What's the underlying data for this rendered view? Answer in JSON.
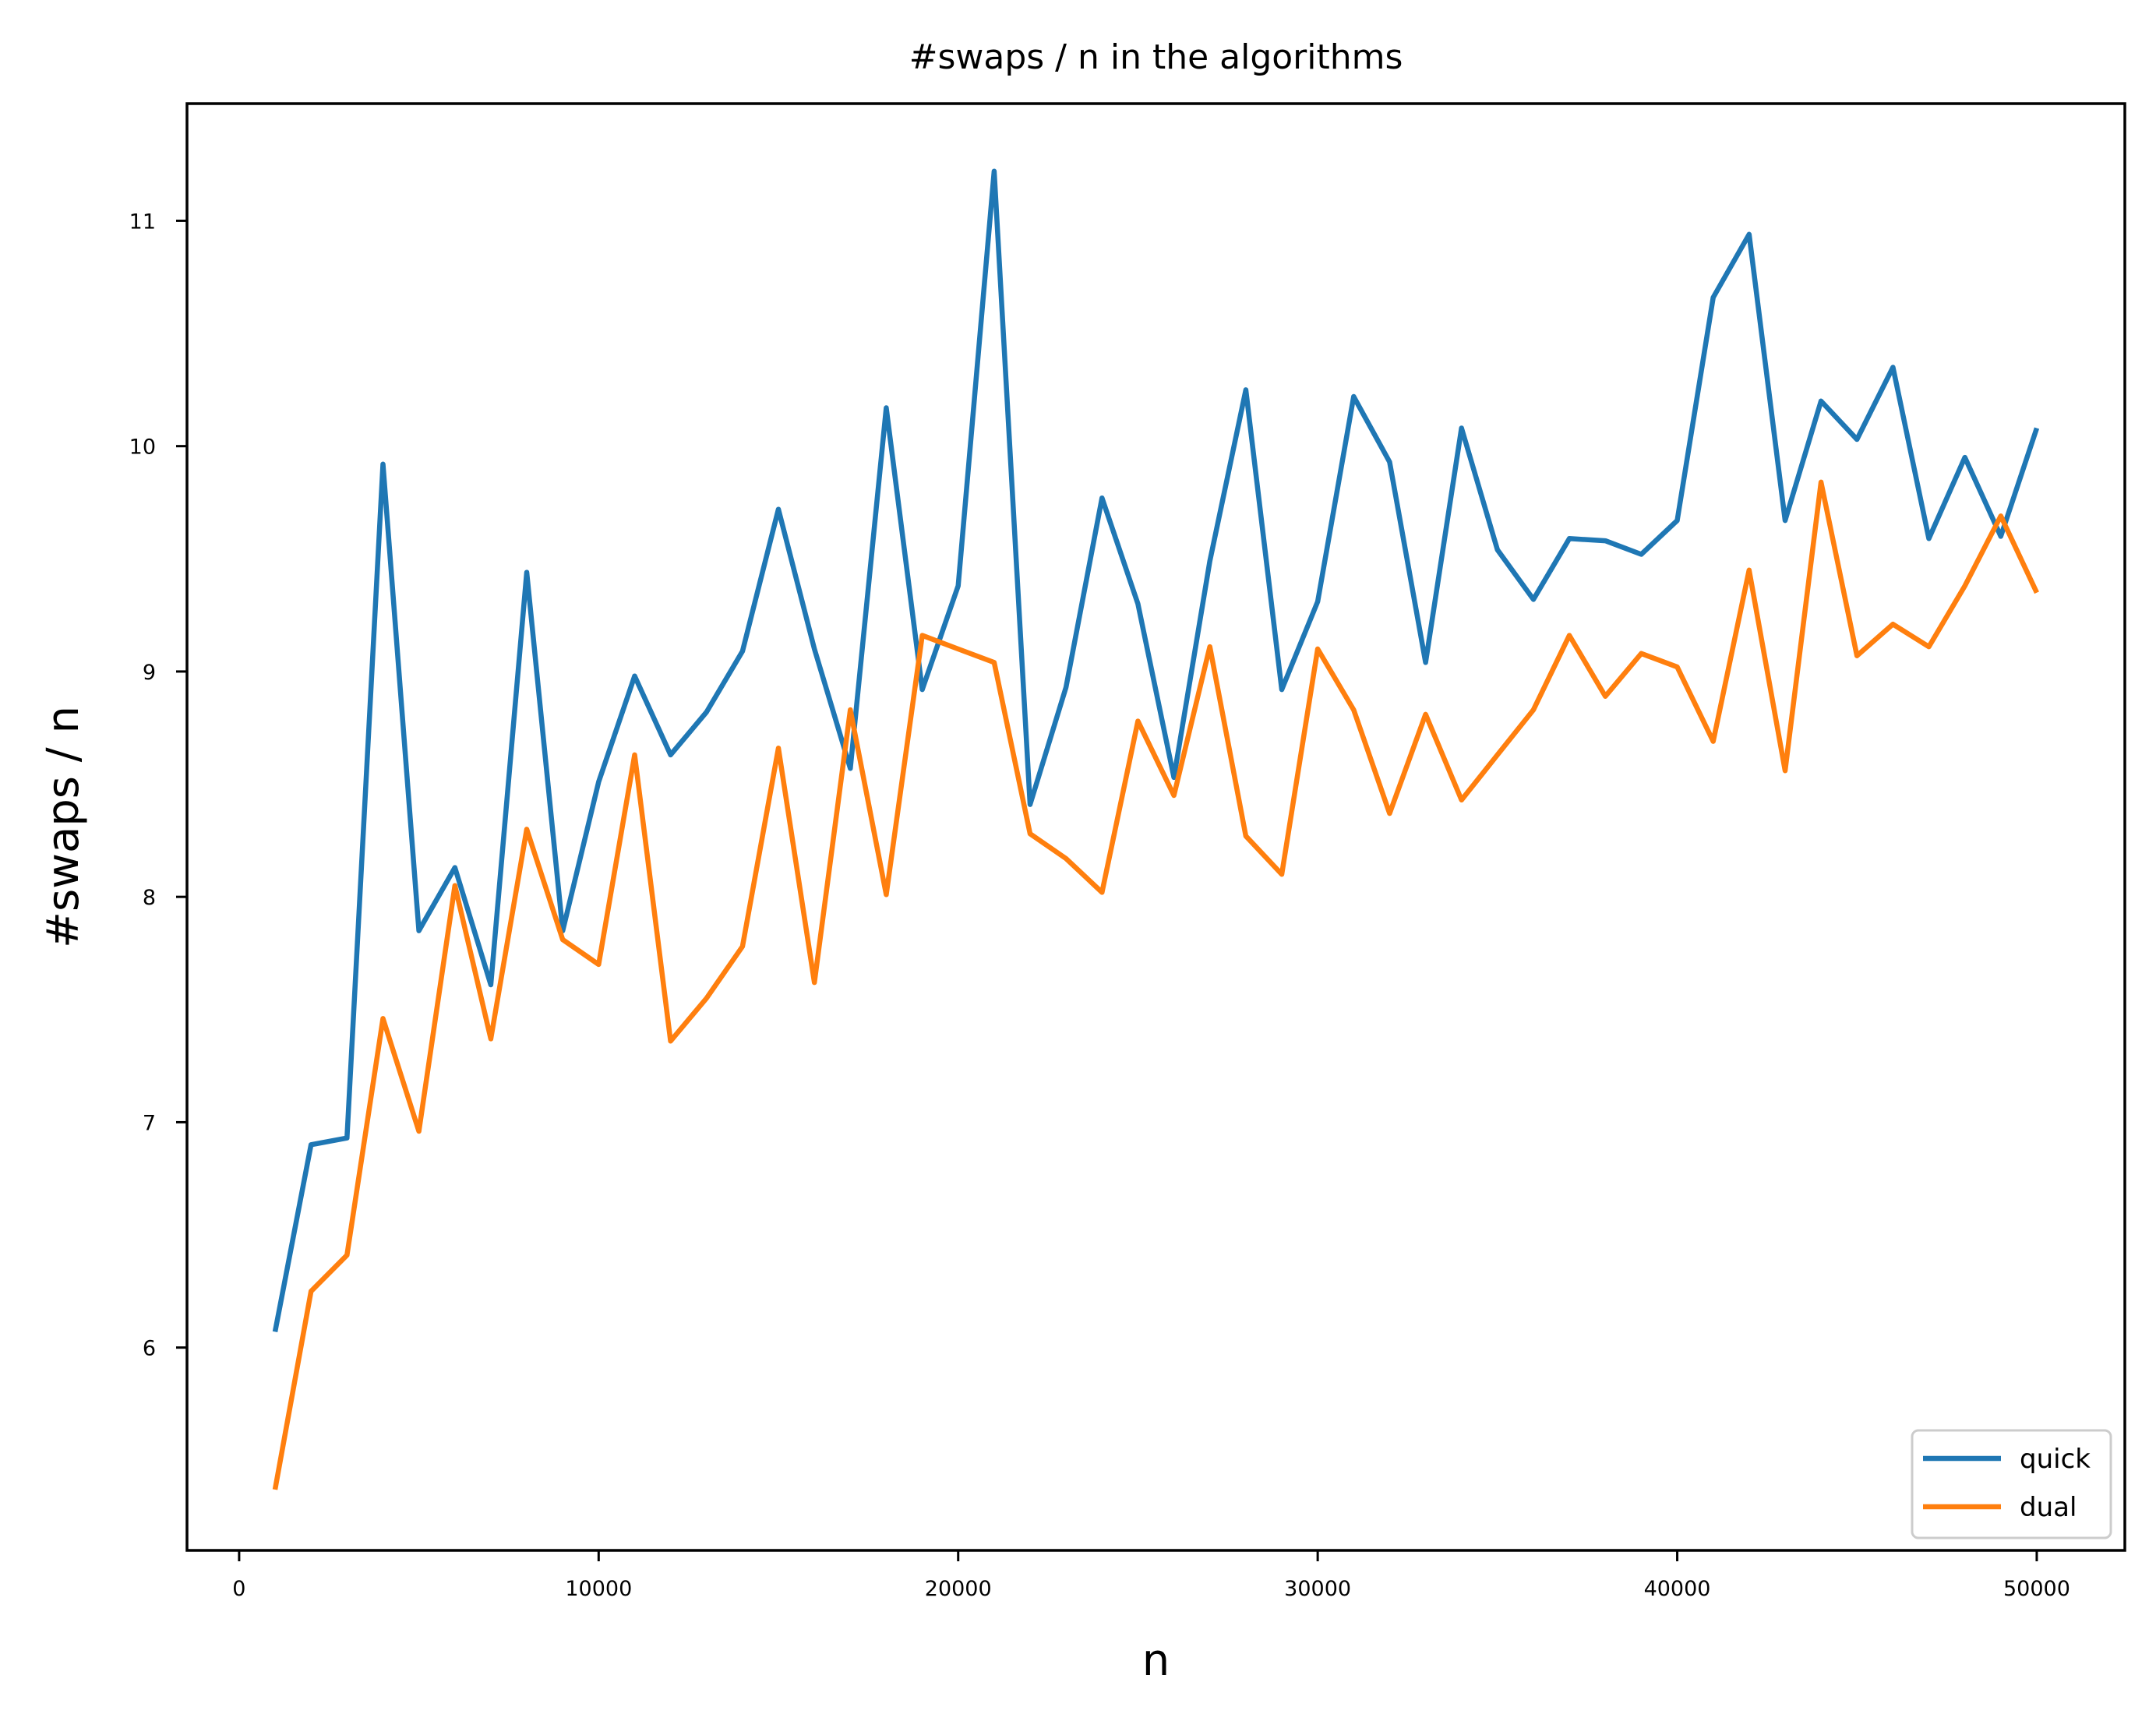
{
  "chart_data": {
    "type": "line",
    "title": "#swaps / n in the algorithms",
    "xlabel": "n",
    "ylabel": "#swaps / n",
    "xlim": [
      -1450,
      52450
    ],
    "ylim": [
      5.1,
      11.52
    ],
    "xticks": [
      0,
      10000,
      20000,
      30000,
      40000,
      50000
    ],
    "yticks": [
      6,
      7,
      8,
      9,
      10,
      11
    ],
    "grid": false,
    "legend_position": "lower-right",
    "x": [
      1000,
      2000,
      3000,
      4000,
      5000,
      6000,
      7000,
      8000,
      9000,
      10000,
      11000,
      12000,
      13000,
      14000,
      15000,
      16000,
      17000,
      18000,
      19000,
      20000,
      21000,
      22000,
      23000,
      24000,
      25000,
      26000,
      27000,
      28000,
      29000,
      30000,
      31000,
      32000,
      33000,
      34000,
      35000,
      36000,
      37000,
      38000,
      39000,
      40000,
      41000,
      42000,
      43000,
      44000,
      45000,
      46000,
      47000,
      48000,
      49000,
      50000
    ],
    "series": [
      {
        "name": "quick",
        "color": "#1f77b4",
        "values": [
          6.07,
          6.9,
          6.93,
          9.92,
          7.85,
          8.13,
          7.61,
          9.44,
          7.85,
          8.51,
          8.98,
          8.63,
          8.82,
          9.09,
          9.72,
          9.1,
          8.57,
          10.17,
          8.92,
          9.38,
          11.22,
          8.41,
          8.93,
          9.77,
          9.3,
          8.53,
          9.49,
          10.25,
          8.92,
          9.31,
          10.22,
          9.93,
          9.04,
          10.08,
          9.54,
          9.32,
          9.59,
          9.58,
          9.52,
          9.67,
          10.66,
          10.94,
          9.67,
          10.2,
          10.03,
          10.35,
          9.59,
          9.95,
          9.6,
          10.08
        ]
      },
      {
        "name": "dual",
        "color": "#ff7f0e",
        "values": [
          5.37,
          6.25,
          6.41,
          7.46,
          6.96,
          8.05,
          7.37,
          8.3,
          7.81,
          7.7,
          8.63,
          7.36,
          7.55,
          7.78,
          8.66,
          7.62,
          8.83,
          8.01,
          9.16,
          9.1,
          9.04,
          8.28,
          8.17,
          8.02,
          8.78,
          8.45,
          9.11,
          8.27,
          8.1,
          9.1,
          8.83,
          8.37,
          8.81,
          8.43,
          8.63,
          8.83,
          9.16,
          8.89,
          9.08,
          9.02,
          8.69,
          9.45,
          8.56,
          9.84,
          9.07,
          9.21,
          9.11,
          9.38,
          9.69,
          9.35
        ]
      }
    ]
  }
}
